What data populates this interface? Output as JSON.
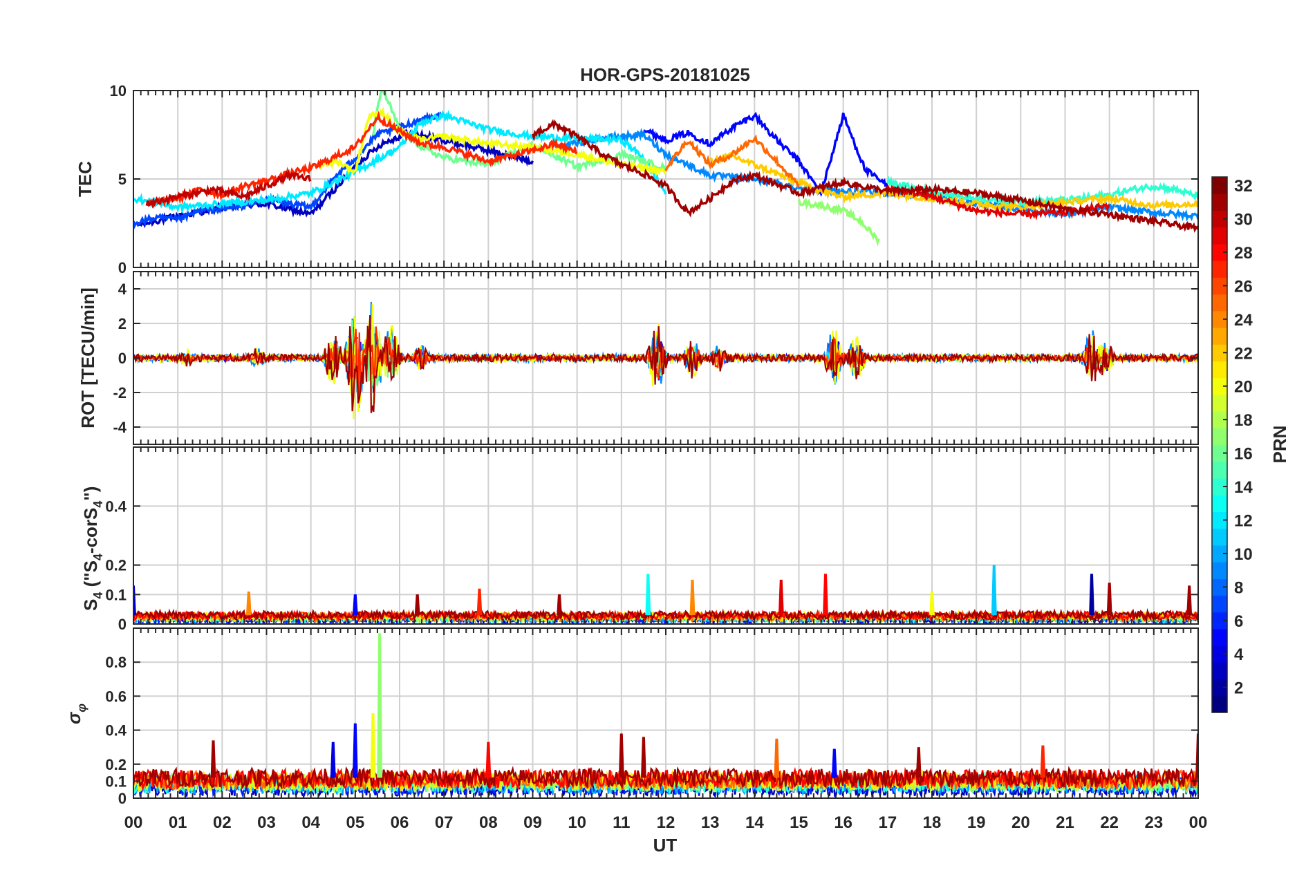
{
  "chart_data": {
    "type": "line",
    "title": "HOR-GPS-20181025",
    "xlabel": "UT",
    "x_ticks": [
      "00",
      "01",
      "02",
      "03",
      "04",
      "05",
      "06",
      "07",
      "08",
      "09",
      "10",
      "11",
      "12",
      "13",
      "14",
      "15",
      "16",
      "17",
      "18",
      "19",
      "20",
      "21",
      "22",
      "23",
      "00"
    ],
    "xlim": [
      0,
      24
    ],
    "grid": true,
    "colorbar": {
      "label": "PRN",
      "colormap": "jet",
      "range": [
        1,
        32
      ],
      "ticks": [
        "2",
        "4",
        "6",
        "8",
        "10",
        "12",
        "14",
        "16",
        "18",
        "20",
        "22",
        "24",
        "26",
        "28",
        "30",
        "32"
      ],
      "tick_values": [
        2,
        4,
        6,
        8,
        10,
        12,
        14,
        16,
        18,
        20,
        22,
        24,
        26,
        28,
        30,
        32
      ]
    },
    "panels": [
      {
        "id": "tec",
        "ylabel": "TEC",
        "ylim": [
          0,
          10
        ],
        "ytick_values": [
          0,
          5,
          10
        ],
        "ytick_labels": [
          "0",
          "5",
          "10"
        ],
        "series": [
          {
            "prn": 3,
            "x": [
              0.1,
              1,
              2,
              3,
              4,
              4.6,
              5.2,
              5.6,
              6.2,
              7,
              8,
              9
            ],
            "y": [
              2.4,
              2.9,
              3.4,
              3.6,
              3.0,
              4.6,
              6.2,
              7.0,
              7.6,
              7.2,
              6.6,
              6.0
            ]
          },
          {
            "prn": 5,
            "x": [
              11.5,
              12,
              12.5,
              13,
              13.5,
              14,
              14.5,
              15,
              15.5,
              16,
              16.5,
              17
            ],
            "y": [
              7.8,
              7.2,
              7.6,
              7.0,
              7.9,
              8.6,
              7.2,
              6.0,
              4.2,
              8.6,
              5.5,
              4.6
            ]
          },
          {
            "prn": 7,
            "x": [
              0,
              0.5,
              1,
              1.5,
              2,
              2.5,
              3,
              3.5,
              4,
              4.5,
              5,
              5.5,
              6,
              6.5,
              7
            ],
            "y": [
              2.5,
              2.8,
              2.7,
              3.2,
              3.3,
              3.5,
              3.9,
              3.6,
              3.4,
              5.0,
              6.2,
              7.5,
              7.9,
              8.4,
              8.6
            ]
          },
          {
            "prn": 9,
            "x": [
              9.5,
              10,
              10.5,
              11,
              11.5,
              12,
              13,
              14,
              15,
              16,
              17,
              18,
              19,
              20,
              21,
              22,
              23,
              24
            ],
            "y": [
              6.8,
              7.0,
              7.3,
              7.4,
              7.5,
              6.4,
              5.2,
              5.0,
              4.5,
              4.3,
              4.2,
              4.0,
              3.6,
              3.3,
              3.0,
              3.4,
              3.1,
              2.9
            ]
          },
          {
            "prn": 12,
            "x": [
              0,
              1,
              2,
              3,
              4,
              5,
              6,
              6.5,
              7,
              8,
              9,
              10,
              11,
              11.5,
              12
            ],
            "y": [
              3.9,
              3.4,
              3.6,
              3.8,
              4.2,
              5.4,
              6.8,
              8.2,
              8.6,
              7.8,
              7.4,
              7.3,
              7.2,
              6.2,
              4.2
            ]
          },
          {
            "prn": 14,
            "x": [
              17,
              18,
              19,
              20,
              21,
              22,
              22.5,
              23,
              23.5,
              24
            ],
            "y": [
              4.8,
              4.3,
              3.9,
              3.7,
              3.8,
              4.1,
              4.4,
              4.6,
              4.4,
              4.0
            ]
          },
          {
            "prn": 16,
            "x": [
              5.4,
              5.6,
              6,
              6.5,
              7,
              7.5,
              8,
              8.5,
              9,
              10,
              11,
              12
            ],
            "y": [
              7.5,
              10.2,
              7.8,
              6.8,
              6.2,
              6.0,
              5.8,
              6.4,
              6.9,
              5.7,
              6.4,
              5.6
            ]
          },
          {
            "prn": 17,
            "x": [
              15,
              15.5,
              16,
              16.4,
              16.8
            ],
            "y": [
              3.7,
              3.5,
              3.2,
              2.6,
              1.5
            ]
          },
          {
            "prn": 20,
            "x": [
              4.2,
              4.6,
              5,
              5.3,
              5.6,
              6,
              6.5,
              7,
              7.5,
              8,
              9,
              10,
              11,
              12
            ],
            "y": [
              5.8,
              6.0,
              5.4,
              8.5,
              8.8,
              7.6,
              7.2,
              7.4,
              7.2,
              7.0,
              6.8,
              6.4,
              5.8,
              5.4
            ]
          },
          {
            "prn": 22,
            "x": [
              13,
              13.5,
              14,
              14.5,
              15,
              15.5,
              16,
              17,
              18,
              19,
              20,
              21,
              22,
              23,
              24
            ],
            "y": [
              6.0,
              6.3,
              5.8,
              5.3,
              4.8,
              4.3,
              4.0,
              4.2,
              3.9,
              3.6,
              3.4,
              3.7,
              3.9,
              3.5,
              3.6
            ]
          },
          {
            "prn": 25,
            "x": [
              12,
              12.5,
              13,
              13.5,
              14,
              14.5,
              15
            ],
            "y": [
              5.6,
              7.2,
              5.8,
              6.4,
              7.3,
              6.0,
              4.6
            ]
          },
          {
            "prn": 27,
            "x": [
              0.3,
              1,
              1.5,
              2,
              2.5,
              3,
              3.5,
              4,
              4.5,
              5,
              5.5,
              6,
              6.5,
              7,
              8,
              9,
              9.5,
              10
            ],
            "y": [
              3.6,
              3.9,
              4.4,
              4.1,
              4.6,
              4.9,
              5.3,
              5.6,
              6.2,
              6.8,
              8.5,
              7.7,
              7.0,
              6.8,
              6.0,
              6.6,
              7.0,
              6.5
            ]
          },
          {
            "prn": 29,
            "x": [
              17,
              18,
              19,
              20,
              21,
              22
            ],
            "y": [
              4.5,
              4.0,
              3.2,
              3.0,
              3.1,
              3.5
            ]
          },
          {
            "prn": 30,
            "x": [
              0.3,
              1,
              1.8,
              2.5,
              3,
              3.5,
              4
            ],
            "y": [
              3.6,
              4.0,
              4.4,
              4.0,
              4.6,
              5.2,
              5.0
            ]
          },
          {
            "prn": 31,
            "x": [
              9,
              9.5,
              10,
              10.5,
              11,
              11.5,
              12,
              12.5,
              13,
              13.5,
              14,
              15,
              16,
              17,
              18,
              19,
              20,
              21,
              22,
              23,
              24
            ],
            "y": [
              7.5,
              8.1,
              7.4,
              6.5,
              5.8,
              5.3,
              4.6,
              3.1,
              3.9,
              4.9,
              5.2,
              4.2,
              4.8,
              4.3,
              4.4,
              4.2,
              3.8,
              3.3,
              3.0,
              2.6,
              2.2
            ]
          }
        ]
      },
      {
        "id": "rot",
        "ylabel": "ROT [TECU/min]",
        "ylim": [
          -5,
          5
        ],
        "ytick_values": [
          -4,
          -2,
          0,
          2,
          4
        ],
        "ytick_labels": [
          "-4",
          "-2",
          "0",
          "2",
          "4"
        ],
        "bursts": [
          {
            "t": 1.2,
            "amp": 0.5
          },
          {
            "t": 2.8,
            "amp": 0.6
          },
          {
            "t": 4.5,
            "amp": 1.6
          },
          {
            "t": 5.0,
            "amp": 3.8
          },
          {
            "t": 5.4,
            "amp": 3.6
          },
          {
            "t": 5.8,
            "amp": 2.0
          },
          {
            "t": 6.5,
            "amp": 0.8
          },
          {
            "t": 11.8,
            "amp": 2.2
          },
          {
            "t": 12.6,
            "amp": 1.2
          },
          {
            "t": 13.2,
            "amp": 0.9
          },
          {
            "t": 15.8,
            "amp": 1.9
          },
          {
            "t": 16.3,
            "amp": 1.3
          },
          {
            "t": 21.6,
            "amp": 1.7
          },
          {
            "t": 21.9,
            "amp": 1.2
          }
        ]
      },
      {
        "id": "s4",
        "ylabel": "S_4 (\"S_4-corS_4\")",
        "ylim": [
          0,
          0.6
        ],
        "ytick_values": [
          0,
          0.1,
          0.2,
          0.4
        ],
        "ytick_labels": [
          "0",
          "0.1",
          "0.2",
          "0.4"
        ],
        "baseline": 0.03,
        "peaks": [
          {
            "t": 0.0,
            "v": 0.13,
            "prn": 3
          },
          {
            "t": 2.6,
            "v": 0.11,
            "prn": 24
          },
          {
            "t": 5.0,
            "v": 0.1,
            "prn": 5
          },
          {
            "t": 6.4,
            "v": 0.1,
            "prn": 31
          },
          {
            "t": 7.8,
            "v": 0.12,
            "prn": 27
          },
          {
            "t": 9.6,
            "v": 0.1,
            "prn": 31
          },
          {
            "t": 11.6,
            "v": 0.17,
            "prn": 13
          },
          {
            "t": 12.6,
            "v": 0.15,
            "prn": 24
          },
          {
            "t": 14.6,
            "v": 0.15,
            "prn": 29
          },
          {
            "t": 15.6,
            "v": 0.17,
            "prn": 28
          },
          {
            "t": 18.0,
            "v": 0.11,
            "prn": 20
          },
          {
            "t": 19.4,
            "v": 0.2,
            "prn": 11
          },
          {
            "t": 21.6,
            "v": 0.17,
            "prn": 2
          },
          {
            "t": 22.0,
            "v": 0.14,
            "prn": 31
          },
          {
            "t": 23.8,
            "v": 0.13,
            "prn": 31
          }
        ]
      },
      {
        "id": "sigma_phi",
        "ylabel": "σ_φ",
        "ylim": [
          0,
          1
        ],
        "ytick_values": [
          0,
          0.1,
          0.2,
          0.4,
          0.6,
          0.8
        ],
        "ytick_labels": [
          "0",
          "0.1",
          "0.2",
          "0.4",
          "0.6",
          "0.8"
        ],
        "baseline": 0.12,
        "peaks": [
          {
            "t": 1.8,
            "v": 0.34,
            "prn": 31
          },
          {
            "t": 4.5,
            "v": 0.33,
            "prn": 4
          },
          {
            "t": 5.0,
            "v": 0.44,
            "prn": 5
          },
          {
            "t": 5.4,
            "v": 0.5,
            "prn": 20
          },
          {
            "t": 5.55,
            "v": 0.97,
            "prn": 17
          },
          {
            "t": 8.0,
            "v": 0.33,
            "prn": 28
          },
          {
            "t": 11.0,
            "v": 0.38,
            "prn": 31
          },
          {
            "t": 11.5,
            "v": 0.36,
            "prn": 31
          },
          {
            "t": 14.5,
            "v": 0.35,
            "prn": 25
          },
          {
            "t": 15.8,
            "v": 0.29,
            "prn": 5
          },
          {
            "t": 17.7,
            "v": 0.3,
            "prn": 31
          },
          {
            "t": 20.5,
            "v": 0.31,
            "prn": 27
          },
          {
            "t": 24.0,
            "v": 0.38,
            "prn": 31
          }
        ]
      }
    ]
  }
}
